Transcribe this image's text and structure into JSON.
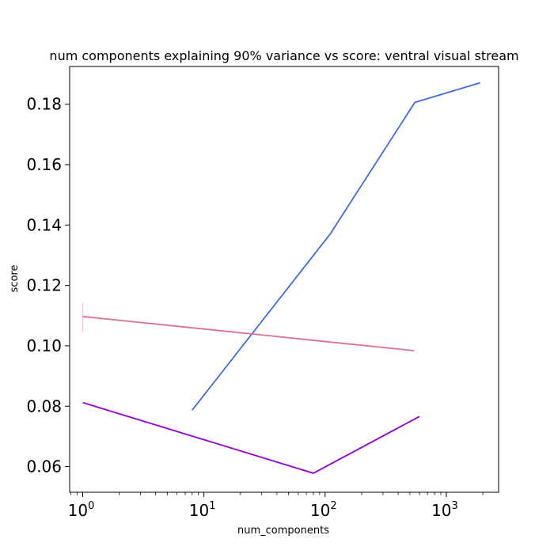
{
  "chart_data": {
    "type": "line",
    "title": "num components explaining 90% variance vs score: ventral visual stream",
    "xlabel": "num_components",
    "ylabel": "score",
    "xscale": "log",
    "xlim": [
      0.78,
      2700
    ],
    "ylim": [
      0.0515,
      0.1925
    ],
    "x_ticks": [
      {
        "value": 1,
        "base": "10",
        "exp": "0"
      },
      {
        "value": 10,
        "base": "10",
        "exp": "1"
      },
      {
        "value": 100,
        "base": "10",
        "exp": "2"
      },
      {
        "value": 1000,
        "base": "10",
        "exp": "3"
      }
    ],
    "y_ticks": [
      {
        "value": 0.06,
        "label": "0.06"
      },
      {
        "value": 0.08,
        "label": "0.08"
      },
      {
        "value": 0.1,
        "label": "0.10"
      },
      {
        "value": 0.12,
        "label": "0.12"
      },
      {
        "value": 0.14,
        "label": "0.14"
      },
      {
        "value": 0.16,
        "label": "0.16"
      },
      {
        "value": 0.18,
        "label": "0.18"
      }
    ],
    "grid": false,
    "legend": "none",
    "series": [
      {
        "color": "#4169e1",
        "points": [
          [
            8,
            0.0787
          ],
          [
            110,
            0.137
          ],
          [
            550,
            0.1806
          ],
          [
            1900,
            0.1871
          ]
        ]
      },
      {
        "color": "#db7093",
        "points": [
          [
            1,
            0.1097
          ],
          [
            540,
            0.0984
          ]
        ],
        "error_bar": {
          "x": 1,
          "low": 0.1045,
          "high": 0.1142,
          "color": "#f4c2d0"
        }
      },
      {
        "color": "#9400d3",
        "points": [
          [
            1,
            0.0812
          ],
          [
            80,
            0.0578
          ],
          [
            600,
            0.0766
          ]
        ]
      }
    ]
  }
}
